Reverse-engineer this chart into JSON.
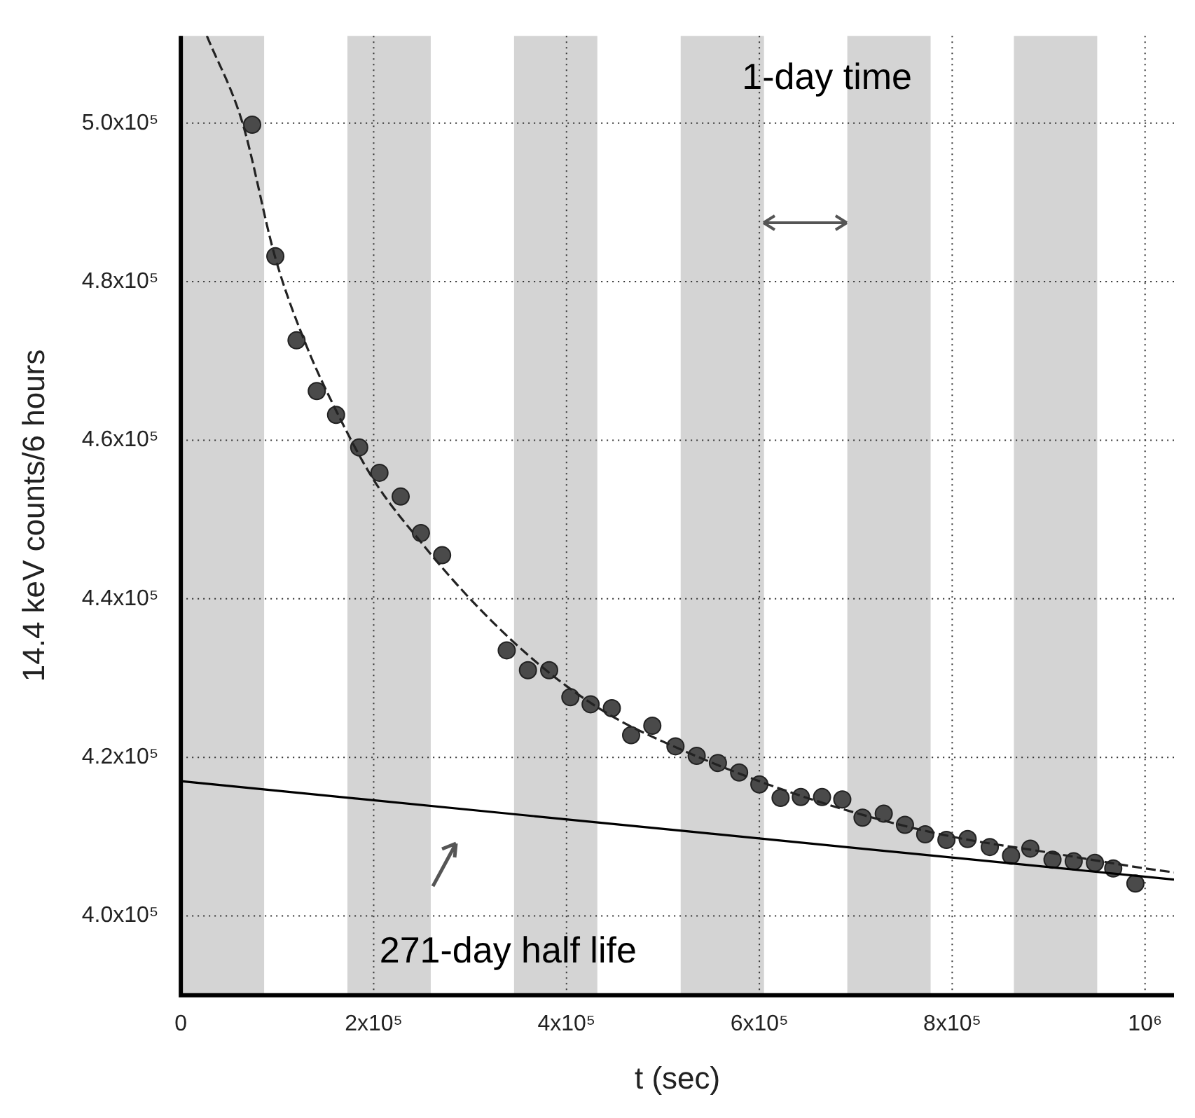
{
  "chart_data": {
    "type": "scatter",
    "xlabel": "t (sec)",
    "ylabel": "14.4 keV counts/6 hours",
    "annotations": [
      "1-day time",
      "271-day half life"
    ],
    "xlim": [
      0,
      1030000
    ],
    "xticks": [
      0,
      {
        "value": 200000,
        "label": "2x10⁵"
      },
      {
        "value": 400000,
        "label": "4x10⁵"
      },
      {
        "value": 600000,
        "label": "6x10⁵"
      },
      {
        "value": 800000,
        "label": "8x10⁵"
      },
      {
        "value": 1000000,
        "label": "10⁶"
      }
    ],
    "ylim": [
      390000,
      511000
    ],
    "yticks": [
      {
        "value": 400000,
        "label": "4.0x10⁵"
      },
      {
        "value": 420000,
        "label": "4.2x10⁵"
      },
      {
        "value": 440000,
        "label": "4.4x10⁵"
      },
      {
        "value": 460000,
        "label": "4.6x10⁵"
      },
      {
        "value": 480000,
        "label": "4.8x10⁵"
      },
      {
        "value": 500000,
        "label": "5.0x10⁵"
      }
    ],
    "grid": true,
    "legend": false,
    "marker": "circle",
    "bands": [
      {
        "axis": "x",
        "from": 0,
        "to": 86400,
        "color": "#d4d4d4"
      },
      {
        "axis": "x",
        "from": 172800,
        "to": 259200,
        "color": "#d4d4d4"
      },
      {
        "axis": "x",
        "from": 345600,
        "to": 432000,
        "color": "#d4d4d4"
      },
      {
        "axis": "x",
        "from": 518400,
        "to": 604800,
        "color": "#d4d4d4"
      },
      {
        "axis": "x",
        "from": 691200,
        "to": 777600,
        "color": "#d4d4d4"
      },
      {
        "axis": "x",
        "from": 864000,
        "to": 950400,
        "color": "#d4d4d4"
      }
    ],
    "series": [
      {
        "color": "#4a4a4a",
        "x": [
          74000,
          98000,
          120000,
          141000,
          161000,
          185000,
          206000,
          228000,
          249000,
          271000,
          338000,
          360000,
          382000,
          404000,
          425000,
          447000,
          467000,
          489000,
          513000,
          535000,
          557000,
          579000,
          600000,
          622000,
          643000,
          665000,
          686000,
          707000,
          729000,
          751000,
          772000,
          794000,
          816000,
          839000,
          861000,
          881000,
          904000,
          926000,
          948000,
          967000,
          990000
        ],
        "values": [
          499800,
          483200,
          472600,
          466200,
          463200,
          459100,
          455900,
          452900,
          448300,
          445500,
          433500,
          431000,
          431000,
          427600,
          426700,
          426200,
          422800,
          424000,
          421400,
          420200,
          419300,
          418100,
          416600,
          414900,
          415000,
          415000,
          414700,
          412400,
          412900,
          411500,
          410300,
          409600,
          409700,
          408700,
          407600,
          408500,
          407100,
          406900,
          406700,
          406000,
          404100
        ]
      },
      {
        "type": "line",
        "color": "#222222",
        "line_style": "dashed",
        "marker": "none",
        "x": [
          27000,
          64000,
          98000,
          130000,
          160000,
          200000,
          250000,
          300000,
          350000,
          400000,
          450000,
          500000,
          600000,
          700000,
          800000,
          900000,
          1000000,
          1030000
        ],
        "values": [
          511000,
          500000,
          483000,
          472000,
          464000,
          455000,
          447000,
          440000,
          434000,
          429000,
          425000,
          422000,
          417000,
          413000,
          410000,
          408000,
          406000,
          405500
        ]
      },
      {
        "type": "line",
        "color": "#000000",
        "line_style": "solid",
        "marker": "none",
        "x": [
          0,
          1030000
        ],
        "values": [
          417000,
          404600
        ]
      }
    ]
  }
}
